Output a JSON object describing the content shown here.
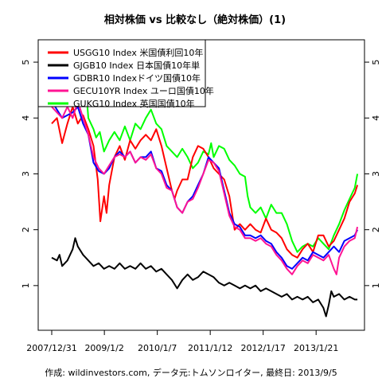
{
  "chart_data": {
    "type": "line",
    "title": "相対株価 vs 比較なし（絶対株価）(1)",
    "caption": "作成: wildinvestors.com, データ元:トムソンロイター, 最終日: 2013/9/5",
    "x_ticks": [
      "2007/12/31",
      "2009/1/2",
      "2010/1/7",
      "2011/1/12",
      "2012/1/17",
      "2013/1/21"
    ],
    "x_range": [
      "2007/12/31",
      "2013/9/5"
    ],
    "y_ticks": [
      1,
      2,
      3,
      4,
      5
    ],
    "ylim": [
      0.2,
      5.4
    ],
    "grid": false,
    "legend_position": "top-left",
    "series": [
      {
        "name": "GUKG10 Index 英国国債10年",
        "color": "#00ff00",
        "points": [
          [
            0,
            4.5
          ],
          [
            0.1,
            4.6
          ],
          [
            0.2,
            4.4
          ],
          [
            0.25,
            5.0
          ],
          [
            0.3,
            4.55
          ],
          [
            0.4,
            4.7
          ],
          [
            0.5,
            4.3
          ],
          [
            0.55,
            4.5
          ],
          [
            0.65,
            4.6
          ],
          [
            0.7,
            4.0
          ],
          [
            0.8,
            3.8
          ],
          [
            0.85,
            3.65
          ],
          [
            0.92,
            3.75
          ],
          [
            1.0,
            3.4
          ],
          [
            1.1,
            3.6
          ],
          [
            1.2,
            3.75
          ],
          [
            1.3,
            3.6
          ],
          [
            1.4,
            3.85
          ],
          [
            1.5,
            3.6
          ],
          [
            1.6,
            3.9
          ],
          [
            1.7,
            3.8
          ],
          [
            1.8,
            4.0
          ],
          [
            1.9,
            4.15
          ],
          [
            2.0,
            3.9
          ],
          [
            2.1,
            3.8
          ],
          [
            2.2,
            3.5
          ],
          [
            2.3,
            3.4
          ],
          [
            2.4,
            3.3
          ],
          [
            2.5,
            3.45
          ],
          [
            2.6,
            3.3
          ],
          [
            2.7,
            3.1
          ],
          [
            2.8,
            3.2
          ],
          [
            2.9,
            3.4
          ],
          [
            3.0,
            3.35
          ],
          [
            3.05,
            3.55
          ],
          [
            3.1,
            3.3
          ],
          [
            3.2,
            3.5
          ],
          [
            3.3,
            3.45
          ],
          [
            3.4,
            3.25
          ],
          [
            3.5,
            3.15
          ],
          [
            3.6,
            3.0
          ],
          [
            3.7,
            2.95
          ],
          [
            3.75,
            2.6
          ],
          [
            3.8,
            2.4
          ],
          [
            3.9,
            2.3
          ],
          [
            4.0,
            2.4
          ],
          [
            4.1,
            2.2
          ],
          [
            4.2,
            2.45
          ],
          [
            4.3,
            2.3
          ],
          [
            4.4,
            2.3
          ],
          [
            4.5,
            2.1
          ],
          [
            4.6,
            1.8
          ],
          [
            4.65,
            1.7
          ],
          [
            4.7,
            1.6
          ],
          [
            4.8,
            1.7
          ],
          [
            4.9,
            1.75
          ],
          [
            5.0,
            1.7
          ],
          [
            5.1,
            1.85
          ],
          [
            5.2,
            1.75
          ],
          [
            5.3,
            1.65
          ],
          [
            5.4,
            1.9
          ],
          [
            5.5,
            2.1
          ],
          [
            5.6,
            2.35
          ],
          [
            5.7,
            2.55
          ],
          [
            5.8,
            2.75
          ],
          [
            5.85,
            3.0
          ]
        ]
      },
      {
        "name": "USGG10 Index 米国債利回10年",
        "color": "#ff0000",
        "points": [
          [
            0,
            3.9
          ],
          [
            0.1,
            4.0
          ],
          [
            0.2,
            3.55
          ],
          [
            0.3,
            3.9
          ],
          [
            0.4,
            4.2
          ],
          [
            0.5,
            3.9
          ],
          [
            0.6,
            4.05
          ],
          [
            0.7,
            3.8
          ],
          [
            0.8,
            3.5
          ],
          [
            0.88,
            2.9
          ],
          [
            0.93,
            2.15
          ],
          [
            1.0,
            2.6
          ],
          [
            1.05,
            2.3
          ],
          [
            1.1,
            2.8
          ],
          [
            1.2,
            3.3
          ],
          [
            1.3,
            3.5
          ],
          [
            1.4,
            3.25
          ],
          [
            1.5,
            3.6
          ],
          [
            1.6,
            3.45
          ],
          [
            1.7,
            3.6
          ],
          [
            1.8,
            3.7
          ],
          [
            1.9,
            3.6
          ],
          [
            2.0,
            3.8
          ],
          [
            2.1,
            3.5
          ],
          [
            2.2,
            3.1
          ],
          [
            2.3,
            2.7
          ],
          [
            2.35,
            2.55
          ],
          [
            2.4,
            2.7
          ],
          [
            2.5,
            2.9
          ],
          [
            2.6,
            2.9
          ],
          [
            2.7,
            3.3
          ],
          [
            2.8,
            3.5
          ],
          [
            2.9,
            3.45
          ],
          [
            3.0,
            3.3
          ],
          [
            3.1,
            3.1
          ],
          [
            3.2,
            3.0
          ],
          [
            3.3,
            2.9
          ],
          [
            3.4,
            2.6
          ],
          [
            3.5,
            2.0
          ],
          [
            3.6,
            2.1
          ],
          [
            3.7,
            2.0
          ],
          [
            3.8,
            2.1
          ],
          [
            3.9,
            2.0
          ],
          [
            4.0,
            1.95
          ],
          [
            4.1,
            2.2
          ],
          [
            4.2,
            2.0
          ],
          [
            4.3,
            1.95
          ],
          [
            4.4,
            1.85
          ],
          [
            4.5,
            1.65
          ],
          [
            4.6,
            1.55
          ],
          [
            4.7,
            1.5
          ],
          [
            4.8,
            1.65
          ],
          [
            4.9,
            1.75
          ],
          [
            5.0,
            1.6
          ],
          [
            5.1,
            1.9
          ],
          [
            5.2,
            1.9
          ],
          [
            5.3,
            1.7
          ],
          [
            5.4,
            1.8
          ],
          [
            5.5,
            2.0
          ],
          [
            5.6,
            2.2
          ],
          [
            5.7,
            2.5
          ],
          [
            5.8,
            2.65
          ],
          [
            5.85,
            2.8
          ]
        ]
      },
      {
        "name": "GDBR10 Indexドイツ国債10年",
        "color": "#0000ff",
        "points": [
          [
            0,
            4.3
          ],
          [
            0.2,
            4.0
          ],
          [
            0.4,
            4.1
          ],
          [
            0.5,
            4.2
          ],
          [
            0.6,
            3.9
          ],
          [
            0.7,
            3.7
          ],
          [
            0.8,
            3.2
          ],
          [
            0.9,
            3.05
          ],
          [
            1.0,
            3.0
          ],
          [
            1.1,
            3.1
          ],
          [
            1.2,
            3.3
          ],
          [
            1.3,
            3.4
          ],
          [
            1.4,
            3.3
          ],
          [
            1.5,
            3.4
          ],
          [
            1.6,
            3.2
          ],
          [
            1.7,
            3.3
          ],
          [
            1.8,
            3.3
          ],
          [
            1.9,
            3.4
          ],
          [
            2.0,
            3.1
          ],
          [
            2.1,
            3.05
          ],
          [
            2.2,
            2.8
          ],
          [
            2.3,
            2.7
          ],
          [
            2.4,
            2.4
          ],
          [
            2.5,
            2.3
          ],
          [
            2.6,
            2.5
          ],
          [
            2.7,
            2.6
          ],
          [
            2.8,
            2.8
          ],
          [
            2.9,
            3.0
          ],
          [
            3.0,
            3.3
          ],
          [
            3.1,
            3.2
          ],
          [
            3.2,
            3.1
          ],
          [
            3.3,
            2.7
          ],
          [
            3.4,
            2.3
          ],
          [
            3.5,
            2.1
          ],
          [
            3.6,
            2.05
          ],
          [
            3.7,
            1.9
          ],
          [
            3.8,
            1.9
          ],
          [
            3.9,
            1.85
          ],
          [
            4.0,
            1.9
          ],
          [
            4.1,
            1.8
          ],
          [
            4.2,
            1.75
          ],
          [
            4.3,
            1.6
          ],
          [
            4.4,
            1.5
          ],
          [
            4.5,
            1.35
          ],
          [
            4.6,
            1.3
          ],
          [
            4.7,
            1.4
          ],
          [
            4.8,
            1.5
          ],
          [
            4.9,
            1.45
          ],
          [
            5.0,
            1.6
          ],
          [
            5.1,
            1.55
          ],
          [
            5.2,
            1.5
          ],
          [
            5.3,
            1.6
          ],
          [
            5.4,
            1.7
          ],
          [
            5.5,
            1.6
          ],
          [
            5.6,
            1.8
          ],
          [
            5.7,
            1.85
          ],
          [
            5.8,
            1.9
          ],
          [
            5.85,
            2.0
          ]
        ]
      },
      {
        "name": "GECU10YR Index ユーロ国債10年",
        "color": "#ff1493",
        "points": [
          [
            0,
            4.2
          ],
          [
            0.1,
            4.1
          ],
          [
            0.2,
            4.0
          ],
          [
            0.3,
            4.2
          ],
          [
            0.4,
            4.0
          ],
          [
            0.5,
            4.3
          ],
          [
            0.6,
            4.0
          ],
          [
            0.7,
            3.7
          ],
          [
            0.8,
            3.3
          ],
          [
            0.9,
            3.1
          ],
          [
            1.0,
            3.0
          ],
          [
            1.1,
            3.15
          ],
          [
            1.2,
            3.3
          ],
          [
            1.3,
            3.35
          ],
          [
            1.4,
            3.3
          ],
          [
            1.5,
            3.4
          ],
          [
            1.6,
            3.2
          ],
          [
            1.7,
            3.3
          ],
          [
            1.8,
            3.25
          ],
          [
            1.9,
            3.35
          ],
          [
            2.0,
            3.1
          ],
          [
            2.1,
            3.0
          ],
          [
            2.2,
            2.75
          ],
          [
            2.3,
            2.7
          ],
          [
            2.4,
            2.4
          ],
          [
            2.5,
            2.3
          ],
          [
            2.6,
            2.5
          ],
          [
            2.7,
            2.55
          ],
          [
            2.8,
            2.75
          ],
          [
            2.9,
            3.0
          ],
          [
            3.0,
            3.25
          ],
          [
            3.1,
            3.2
          ],
          [
            3.2,
            3.05
          ],
          [
            3.3,
            2.65
          ],
          [
            3.4,
            2.25
          ],
          [
            3.5,
            2.05
          ],
          [
            3.6,
            2.0
          ],
          [
            3.7,
            1.85
          ],
          [
            3.8,
            1.85
          ],
          [
            3.9,
            1.8
          ],
          [
            4.0,
            1.85
          ],
          [
            4.1,
            1.75
          ],
          [
            4.2,
            1.7
          ],
          [
            4.3,
            1.55
          ],
          [
            4.4,
            1.45
          ],
          [
            4.5,
            1.3
          ],
          [
            4.6,
            1.2
          ],
          [
            4.7,
            1.35
          ],
          [
            4.8,
            1.45
          ],
          [
            4.9,
            1.4
          ],
          [
            5.0,
            1.55
          ],
          [
            5.1,
            1.5
          ],
          [
            5.2,
            1.45
          ],
          [
            5.3,
            1.55
          ],
          [
            5.4,
            1.3
          ],
          [
            5.45,
            1.2
          ],
          [
            5.5,
            1.5
          ],
          [
            5.6,
            1.7
          ],
          [
            5.7,
            1.8
          ],
          [
            5.8,
            1.85
          ],
          [
            5.85,
            2.05
          ]
        ]
      },
      {
        "name": "GJGB10 Index 日本国債10年単",
        "color": "#000000",
        "points": [
          [
            0,
            1.5
          ],
          [
            0.1,
            1.45
          ],
          [
            0.15,
            1.55
          ],
          [
            0.2,
            1.35
          ],
          [
            0.3,
            1.45
          ],
          [
            0.4,
            1.65
          ],
          [
            0.45,
            1.85
          ],
          [
            0.5,
            1.7
          ],
          [
            0.6,
            1.55
          ],
          [
            0.7,
            1.45
          ],
          [
            0.8,
            1.35
          ],
          [
            0.9,
            1.4
          ],
          [
            1.0,
            1.3
          ],
          [
            1.1,
            1.35
          ],
          [
            1.2,
            1.3
          ],
          [
            1.3,
            1.4
          ],
          [
            1.4,
            1.3
          ],
          [
            1.5,
            1.35
          ],
          [
            1.6,
            1.3
          ],
          [
            1.7,
            1.4
          ],
          [
            1.8,
            1.3
          ],
          [
            1.9,
            1.35
          ],
          [
            2.0,
            1.25
          ],
          [
            2.1,
            1.3
          ],
          [
            2.2,
            1.2
          ],
          [
            2.3,
            1.1
          ],
          [
            2.4,
            0.95
          ],
          [
            2.5,
            1.1
          ],
          [
            2.6,
            1.2
          ],
          [
            2.7,
            1.1
          ],
          [
            2.8,
            1.15
          ],
          [
            2.9,
            1.25
          ],
          [
            3.0,
            1.2
          ],
          [
            3.1,
            1.15
          ],
          [
            3.2,
            1.05
          ],
          [
            3.3,
            1.0
          ],
          [
            3.4,
            1.05
          ],
          [
            3.5,
            1.0
          ],
          [
            3.6,
            0.95
          ],
          [
            3.7,
            1.0
          ],
          [
            3.8,
            0.95
          ],
          [
            3.9,
            1.0
          ],
          [
            4.0,
            0.9
          ],
          [
            4.1,
            0.95
          ],
          [
            4.2,
            0.9
          ],
          [
            4.3,
            0.85
          ],
          [
            4.4,
            0.8
          ],
          [
            4.5,
            0.85
          ],
          [
            4.6,
            0.75
          ],
          [
            4.7,
            0.8
          ],
          [
            4.8,
            0.75
          ],
          [
            4.9,
            0.8
          ],
          [
            5.0,
            0.7
          ],
          [
            5.1,
            0.75
          ],
          [
            5.2,
            0.6
          ],
          [
            5.25,
            0.45
          ],
          [
            5.3,
            0.65
          ],
          [
            5.35,
            0.9
          ],
          [
            5.4,
            0.8
          ],
          [
            5.5,
            0.85
          ],
          [
            5.6,
            0.75
          ],
          [
            5.7,
            0.8
          ],
          [
            5.8,
            0.75
          ],
          [
            5.85,
            0.75
          ]
        ]
      }
    ]
  }
}
